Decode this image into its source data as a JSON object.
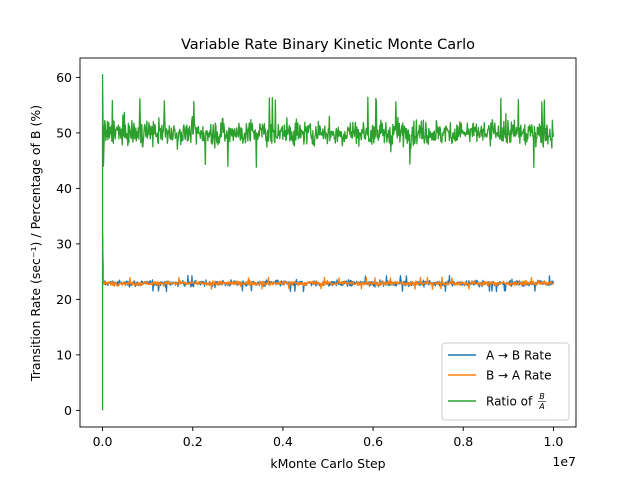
{
  "chart_data": {
    "type": "line",
    "title": "Variable Rate Binary Kinetic Monte Carlo",
    "xlabel": "kMonte Carlo Step",
    "ylabel": "Transition Rate (sec⁻¹) / Percentage of B (%)",
    "x_offset_label": "1e7",
    "xlim": [
      -500000,
      10500000
    ],
    "ylim": [
      -3.0,
      63.5
    ],
    "x_ticks": [
      0,
      2000000,
      4000000,
      6000000,
      8000000,
      10000000
    ],
    "x_tick_labels": [
      "0.0",
      "0.2",
      "0.4",
      "0.6",
      "0.8",
      "1.0"
    ],
    "y_ticks": [
      0,
      10,
      20,
      30,
      40,
      50,
      60
    ],
    "y_tick_labels": [
      "0",
      "10",
      "20",
      "30",
      "40",
      "50",
      "60"
    ],
    "grid": false,
    "legend_position": "lower right",
    "series": [
      {
        "name": "A → B Rate",
        "color": "#1f77b4",
        "initial_points": [
          [
            0,
            32
          ],
          [
            20000,
            23.0
          ]
        ],
        "band": {
          "x_start": 20000,
          "x_end": 10000000,
          "center": 22.9,
          "low": 21.3,
          "high": 24.3
        }
      },
      {
        "name": "B → A Rate",
        "color": "#ff7f0e",
        "initial_points": [
          [
            0,
            30
          ],
          [
            20000,
            23.0
          ]
        ],
        "band": {
          "x_start": 20000,
          "x_end": 10000000,
          "center": 22.9,
          "low": 21.8,
          "high": 24.0
        }
      },
      {
        "name": "Ratio of B/A",
        "color": "#2ca02c",
        "initial_points": [
          [
            0,
            0
          ],
          [
            0,
            60.5
          ],
          [
            20000,
            44
          ],
          [
            40000,
            50
          ]
        ],
        "band": {
          "x_start": 40000,
          "x_end": 10000000,
          "center": 50.0,
          "low": 43.5,
          "high": 56.5
        }
      }
    ]
  }
}
